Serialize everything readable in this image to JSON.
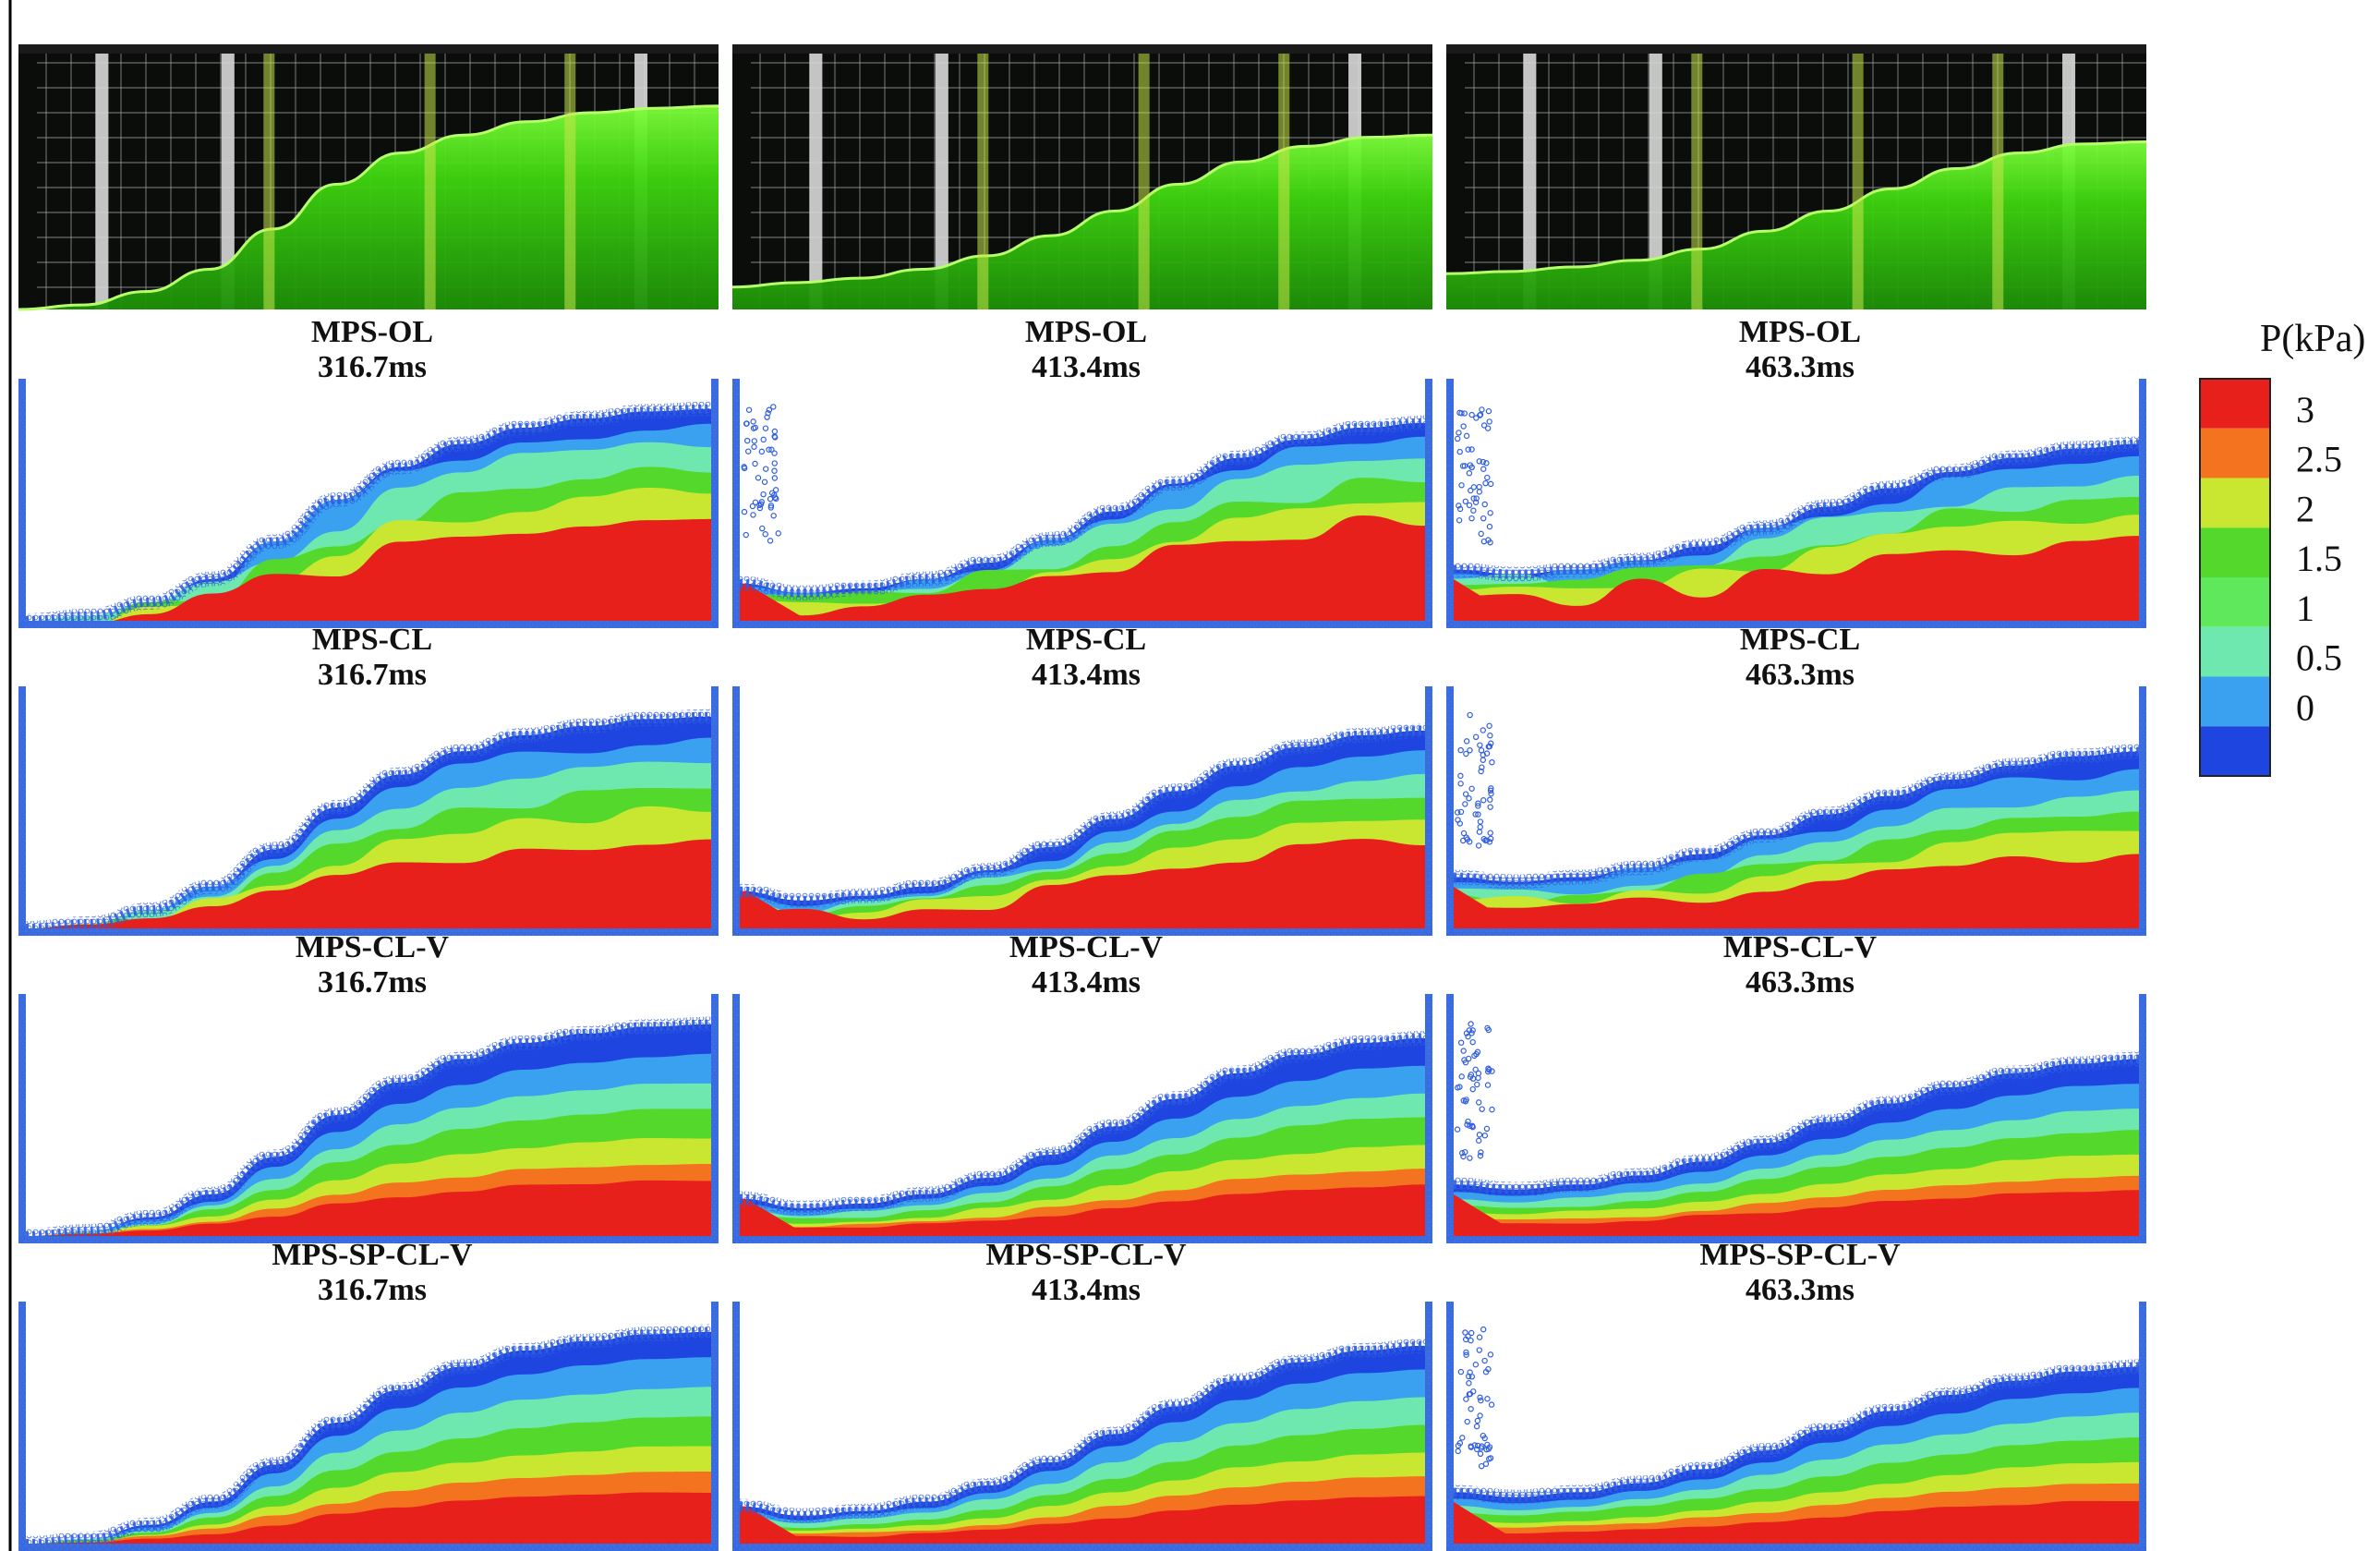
{
  "figure": {
    "photo_row": {
      "snapshots": [
        {
          "surface_heights": [
            0.0,
            0.02,
            0.08,
            0.18,
            0.36,
            0.56,
            0.7,
            0.78,
            0.84,
            0.88,
            0.9,
            0.91
          ]
        },
        {
          "surface_heights": [
            0.1,
            0.12,
            0.14,
            0.18,
            0.24,
            0.33,
            0.44,
            0.56,
            0.66,
            0.73,
            0.77,
            0.78
          ]
        },
        {
          "surface_heights": [
            0.16,
            0.17,
            0.19,
            0.22,
            0.27,
            0.35,
            0.44,
            0.54,
            0.63,
            0.7,
            0.74,
            0.75
          ]
        }
      ]
    },
    "methods": [
      {
        "label": "MPS-OL",
        "variant": "OL"
      },
      {
        "label": "MPS-CL",
        "variant": "CL"
      },
      {
        "label": "MPS-CL-V",
        "variant": "CLV"
      },
      {
        "label": "MPS-SP-CL-V",
        "variant": "SPCLV"
      }
    ],
    "times": [
      {
        "label": "316.7ms",
        "surface_heights": [
          0.0,
          0.02,
          0.08,
          0.18,
          0.34,
          0.52,
          0.66,
          0.76,
          0.83,
          0.87,
          0.9,
          0.91
        ]
      },
      {
        "label": "413.4ms",
        "surface_heights": [
          0.16,
          0.12,
          0.14,
          0.18,
          0.25,
          0.35,
          0.47,
          0.59,
          0.7,
          0.78,
          0.83,
          0.85
        ]
      },
      {
        "label": "463.3ms",
        "surface_heights": [
          0.22,
          0.2,
          0.22,
          0.26,
          0.32,
          0.4,
          0.49,
          0.57,
          0.64,
          0.7,
          0.74,
          0.76
        ]
      }
    ],
    "colorbar": {
      "title": "P(kPa)",
      "ticks": [
        "3",
        "2.5",
        "2",
        "1.5",
        "1",
        "0.5",
        "0"
      ],
      "colors": [
        "#e8201c",
        "#f4731e",
        "#c9e631",
        "#54d82c",
        "#5fe85c",
        "#6fe8b0",
        "#3aa0f0",
        "#1f45e0"
      ],
      "range": [
        0,
        3
      ]
    },
    "wall_color": "#3d6fe0"
  }
}
